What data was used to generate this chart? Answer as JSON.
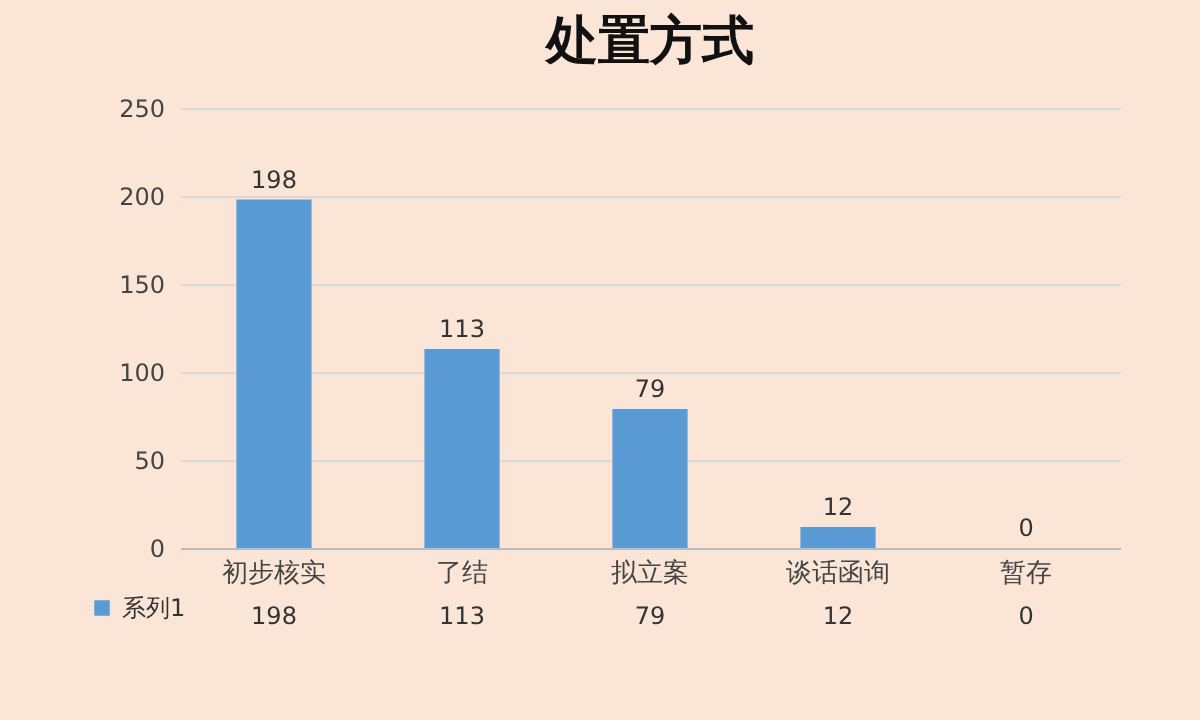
{
  "chart_data": {
    "type": "bar",
    "title": "处置方式",
    "categories": [
      "初步核实",
      "了结",
      "拟立案",
      "谈话函询",
      "暂存"
    ],
    "series": [
      {
        "name": "系列1",
        "color": "#5b9bd5",
        "values": [
          198,
          113,
          79,
          12,
          0
        ]
      }
    ],
    "annotations": [
      "198",
      "113",
      "79",
      "12",
      "0"
    ],
    "ylim": [
      0,
      250
    ],
    "yticks": [
      0,
      50,
      100,
      150,
      200,
      250
    ],
    "grid": "y",
    "data_labels": true,
    "legend": "bottom left"
  }
}
